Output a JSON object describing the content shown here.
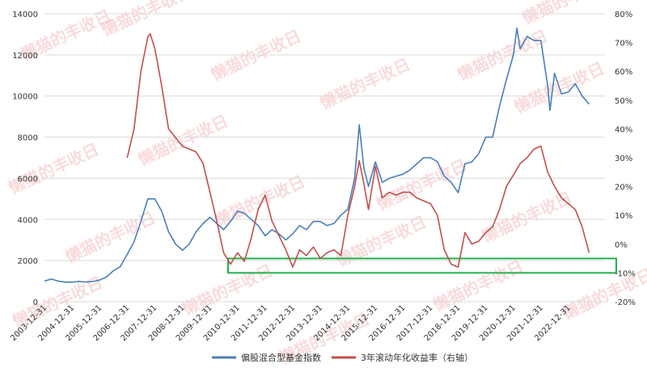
{
  "chart_data": {
    "type": "line",
    "watermark": "懒猫的丰收日",
    "x_tick_labels": [
      "2003-12-31",
      "2004-12-31",
      "2005-12-31",
      "2006-12-31",
      "2007-12-31",
      "2008-12-31",
      "2009-12-31",
      "2010-12-31",
      "2011-12-31",
      "2012-12-31",
      "2013-12-31",
      "2014-12-31",
      "2015-12-31",
      "2016-12-31",
      "2017-12-31",
      "2018-12-31",
      "2019-12-31",
      "2020-12-31",
      "2021-12-31",
      "2022-12-31"
    ],
    "y_left": {
      "min": 0,
      "max": 14000,
      "step": 2000,
      "ticks": [
        "0",
        "2000",
        "4000",
        "6000",
        "8000",
        "10000",
        "12000",
        "14000"
      ]
    },
    "y_right": {
      "min": -20,
      "max": 80,
      "step": 10,
      "ticks": [
        "-20%",
        "-10%",
        "0%",
        "10%",
        "20%",
        "30%",
        "40%",
        "50%",
        "60%",
        "70%",
        "80%"
      ]
    },
    "legend_position": "bottom",
    "grid": "horizontal",
    "highlight_box": {
      "y_from": -10,
      "y_to": -5,
      "color": "#22b14c"
    },
    "series": [
      {
        "name": "偏股混合型基金指数",
        "axis": "left",
        "color": "#4a7ebb",
        "points": [
          [
            "2003-12-31",
            1000
          ],
          [
            "2004-03-31",
            1100
          ],
          [
            "2004-06-30",
            1000
          ],
          [
            "2004-09-30",
            950
          ],
          [
            "2004-12-31",
            950
          ],
          [
            "2005-03-31",
            980
          ],
          [
            "2005-06-30",
            950
          ],
          [
            "2005-09-30",
            980
          ],
          [
            "2005-12-31",
            1050
          ],
          [
            "2006-03-31",
            1200
          ],
          [
            "2006-06-30",
            1500
          ],
          [
            "2006-09-30",
            1700
          ],
          [
            "2006-12-31",
            2300
          ],
          [
            "2007-03-31",
            2900
          ],
          [
            "2007-06-30",
            3900
          ],
          [
            "2007-09-30",
            5000
          ],
          [
            "2007-12-31",
            5000
          ],
          [
            "2008-03-31",
            4400
          ],
          [
            "2008-06-30",
            3400
          ],
          [
            "2008-09-30",
            2800
          ],
          [
            "2008-12-31",
            2500
          ],
          [
            "2009-03-31",
            2800
          ],
          [
            "2009-06-30",
            3400
          ],
          [
            "2009-09-30",
            3800
          ],
          [
            "2009-12-31",
            4100
          ],
          [
            "2010-03-31",
            3800
          ],
          [
            "2010-06-30",
            3500
          ],
          [
            "2010-09-30",
            3900
          ],
          [
            "2010-12-31",
            4400
          ],
          [
            "2011-03-31",
            4300
          ],
          [
            "2011-06-30",
            4000
          ],
          [
            "2011-09-30",
            3700
          ],
          [
            "2011-12-31",
            3200
          ],
          [
            "2012-03-31",
            3500
          ],
          [
            "2012-06-30",
            3300
          ],
          [
            "2012-09-30",
            3000
          ],
          [
            "2012-12-31",
            3300
          ],
          [
            "2013-03-31",
            3700
          ],
          [
            "2013-06-30",
            3500
          ],
          [
            "2013-09-30",
            3900
          ],
          [
            "2013-12-31",
            3900
          ],
          [
            "2014-03-31",
            3700
          ],
          [
            "2014-06-30",
            3800
          ],
          [
            "2014-09-30",
            4200
          ],
          [
            "2014-12-31",
            4500
          ],
          [
            "2015-03-31",
            6000
          ],
          [
            "2015-05-31",
            8600
          ],
          [
            "2015-07-31",
            6500
          ],
          [
            "2015-09-30",
            5600
          ],
          [
            "2015-12-31",
            6800
          ],
          [
            "2016-03-31",
            5800
          ],
          [
            "2016-06-30",
            6000
          ],
          [
            "2016-09-30",
            6100
          ],
          [
            "2016-12-31",
            6200
          ],
          [
            "2017-03-31",
            6400
          ],
          [
            "2017-06-30",
            6700
          ],
          [
            "2017-09-30",
            7000
          ],
          [
            "2017-12-31",
            7000
          ],
          [
            "2018-03-31",
            6800
          ],
          [
            "2018-06-30",
            6100
          ],
          [
            "2018-09-30",
            5800
          ],
          [
            "2018-12-31",
            5300
          ],
          [
            "2019-03-31",
            6700
          ],
          [
            "2019-06-30",
            6800
          ],
          [
            "2019-09-30",
            7200
          ],
          [
            "2019-12-31",
            8000
          ],
          [
            "2020-03-31",
            8000
          ],
          [
            "2020-06-30",
            9500
          ],
          [
            "2020-09-30",
            10800
          ],
          [
            "2020-12-31",
            12000
          ],
          [
            "2021-02-15",
            13300
          ],
          [
            "2021-03-31",
            12300
          ],
          [
            "2021-06-30",
            12900
          ],
          [
            "2021-09-30",
            12700
          ],
          [
            "2021-12-31",
            12700
          ],
          [
            "2022-03-31",
            10500
          ],
          [
            "2022-04-30",
            9300
          ],
          [
            "2022-06-30",
            11100
          ],
          [
            "2022-09-30",
            10100
          ],
          [
            "2022-12-31",
            10200
          ],
          [
            "2023-03-31",
            10600
          ],
          [
            "2023-06-30",
            10000
          ],
          [
            "2023-09-30",
            9600
          ]
        ]
      },
      {
        "name": "3年滚动年化收益率（右轴）",
        "axis": "right",
        "color": "#c0504d",
        "points": [
          [
            "2006-12-31",
            30
          ],
          [
            "2007-03-31",
            40
          ],
          [
            "2007-06-30",
            60
          ],
          [
            "2007-09-30",
            72
          ],
          [
            "2007-10-31",
            73
          ],
          [
            "2007-12-31",
            68
          ],
          [
            "2008-03-31",
            55
          ],
          [
            "2008-06-30",
            40
          ],
          [
            "2008-09-30",
            37
          ],
          [
            "2008-12-31",
            34
          ],
          [
            "2009-03-31",
            33
          ],
          [
            "2009-06-30",
            32
          ],
          [
            "2009-09-30",
            28
          ],
          [
            "2009-12-31",
            18
          ],
          [
            "2010-03-31",
            8
          ],
          [
            "2010-06-30",
            -3
          ],
          [
            "2010-09-30",
            -7
          ],
          [
            "2010-12-31",
            -3
          ],
          [
            "2011-03-31",
            -6
          ],
          [
            "2011-06-30",
            2
          ],
          [
            "2011-09-30",
            12
          ],
          [
            "2011-12-31",
            17
          ],
          [
            "2012-03-31",
            8
          ],
          [
            "2012-06-30",
            3
          ],
          [
            "2012-09-30",
            -2
          ],
          [
            "2012-12-31",
            -8
          ],
          [
            "2013-03-31",
            -2
          ],
          [
            "2013-06-30",
            -4
          ],
          [
            "2013-09-30",
            -1
          ],
          [
            "2013-12-31",
            -5
          ],
          [
            "2014-03-31",
            -3
          ],
          [
            "2014-06-30",
            -2
          ],
          [
            "2014-09-30",
            -4
          ],
          [
            "2014-12-31",
            10
          ],
          [
            "2015-03-31",
            20
          ],
          [
            "2015-05-31",
            29
          ],
          [
            "2015-07-31",
            21
          ],
          [
            "2015-09-30",
            12
          ],
          [
            "2015-12-31",
            27
          ],
          [
            "2016-03-31",
            16
          ],
          [
            "2016-06-30",
            18
          ],
          [
            "2016-09-30",
            17
          ],
          [
            "2016-12-31",
            18
          ],
          [
            "2017-03-31",
            18
          ],
          [
            "2017-06-30",
            16
          ],
          [
            "2017-09-30",
            15
          ],
          [
            "2017-12-31",
            14
          ],
          [
            "2018-03-31",
            10
          ],
          [
            "2018-06-30",
            -2
          ],
          [
            "2018-09-30",
            -7
          ],
          [
            "2018-12-31",
            -8
          ],
          [
            "2019-03-31",
            4
          ],
          [
            "2019-06-30",
            0
          ],
          [
            "2019-09-30",
            1
          ],
          [
            "2019-12-31",
            4
          ],
          [
            "2020-03-31",
            6
          ],
          [
            "2020-06-30",
            12
          ],
          [
            "2020-09-30",
            20
          ],
          [
            "2020-12-31",
            24
          ],
          [
            "2021-03-31",
            28
          ],
          [
            "2021-06-30",
            30
          ],
          [
            "2021-09-30",
            33
          ],
          [
            "2021-12-31",
            34
          ],
          [
            "2022-03-31",
            25
          ],
          [
            "2022-06-30",
            20
          ],
          [
            "2022-09-30",
            16
          ],
          [
            "2022-12-31",
            14
          ],
          [
            "2023-03-31",
            12
          ],
          [
            "2023-06-30",
            6
          ],
          [
            "2023-08-31",
            0
          ],
          [
            "2023-09-30",
            -3
          ]
        ]
      }
    ]
  }
}
